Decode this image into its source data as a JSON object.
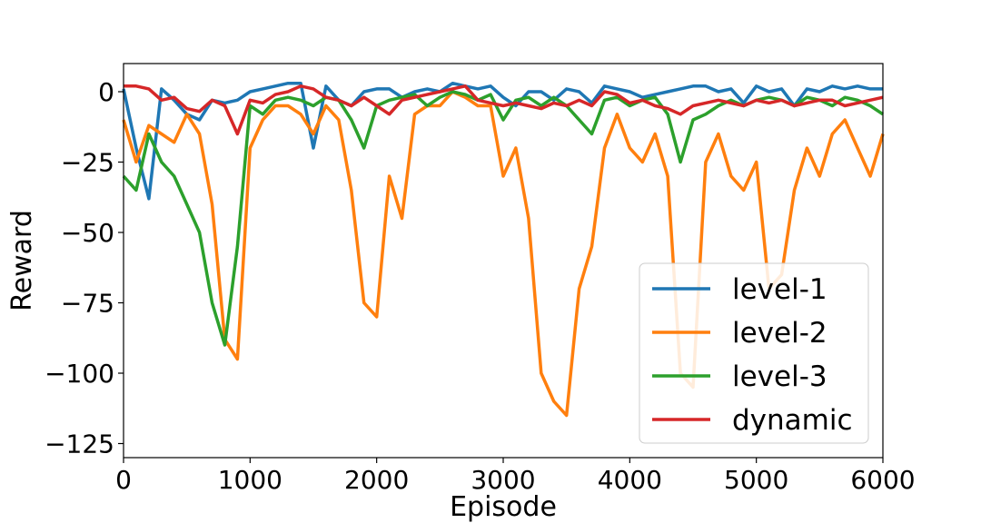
{
  "chart_data": {
    "type": "line",
    "title": "",
    "xlabel": "Episode",
    "ylabel": "Reward",
    "xlim": [
      0,
      6000
    ],
    "ylim": [
      -130,
      10
    ],
    "x_ticks": [
      {
        "value": 0,
        "label": "0"
      },
      {
        "value": 1000,
        "label": "1000"
      },
      {
        "value": 2000,
        "label": "2000"
      },
      {
        "value": 3000,
        "label": "3000"
      },
      {
        "value": 4000,
        "label": "4000"
      },
      {
        "value": 5000,
        "label": "5000"
      },
      {
        "value": 6000,
        "label": "6000"
      }
    ],
    "y_ticks": [
      {
        "value": 0,
        "label": "0"
      },
      {
        "value": -25,
        "label": "−25"
      },
      {
        "value": -50,
        "label": "−50"
      },
      {
        "value": -75,
        "label": "−75"
      },
      {
        "value": -100,
        "label": "−100"
      },
      {
        "value": -125,
        "label": "−125"
      }
    ],
    "grid": false,
    "legend_position": "bottom-right",
    "x": [
      0,
      100,
      200,
      300,
      400,
      500,
      600,
      700,
      800,
      900,
      1000,
      1100,
      1200,
      1300,
      1400,
      1500,
      1600,
      1700,
      1800,
      1900,
      2000,
      2100,
      2200,
      2300,
      2400,
      2500,
      2600,
      2700,
      2800,
      2900,
      3000,
      3100,
      3200,
      3300,
      3400,
      3500,
      3600,
      3700,
      3800,
      3900,
      4000,
      4100,
      4200,
      4300,
      4400,
      4500,
      4600,
      4700,
      4800,
      4900,
      5000,
      5100,
      5200,
      5300,
      5400,
      5500,
      5600,
      5700,
      5800,
      5900,
      6000
    ],
    "series": [
      {
        "name": "level-1",
        "color": "#1f77b4",
        "values": [
          1,
          -20,
          -38,
          1,
          -3,
          -8,
          -10,
          -3,
          -4,
          -3,
          0,
          1,
          2,
          3,
          3,
          -20,
          2,
          -3,
          -5,
          0,
          1,
          1,
          -2,
          0,
          1,
          0,
          3,
          2,
          1,
          2,
          -2,
          -5,
          0,
          0,
          -3,
          1,
          0,
          -4,
          2,
          1,
          0,
          -2,
          -1,
          0,
          1,
          2,
          2,
          0,
          1,
          -4,
          2,
          0,
          1,
          -5,
          1,
          0,
          2,
          1,
          2,
          1,
          1
        ]
      },
      {
        "name": "level-2",
        "color": "#ff7f0e",
        "values": [
          -10,
          -25,
          -12,
          -15,
          -18,
          -8,
          -15,
          -40,
          -88,
          -95,
          -20,
          -10,
          -5,
          -5,
          -8,
          -15,
          -5,
          -10,
          -35,
          -75,
          -80,
          -30,
          -45,
          -8,
          -5,
          -5,
          0,
          -2,
          -5,
          -5,
          -30,
          -20,
          -45,
          -100,
          -110,
          -115,
          -70,
          -55,
          -20,
          -8,
          -20,
          -25,
          -15,
          -30,
          -100,
          -105,
          -25,
          -15,
          -30,
          -35,
          -25,
          -70,
          -65,
          -35,
          -20,
          -30,
          -15,
          -10,
          -20,
          -30,
          -15
        ]
      },
      {
        "name": "level-3",
        "color": "#2ca02c",
        "values": [
          -30,
          -35,
          -15,
          -25,
          -30,
          -40,
          -50,
          -75,
          -90,
          -55,
          -5,
          -8,
          -3,
          -2,
          -3,
          -5,
          -2,
          -3,
          -10,
          -20,
          -5,
          -3,
          -2,
          -1,
          -5,
          -2,
          0,
          -1,
          -3,
          -1,
          -10,
          -3,
          -2,
          -5,
          -2,
          -5,
          -10,
          -15,
          -3,
          -2,
          -5,
          -3,
          -2,
          -8,
          -25,
          -10,
          -8,
          -5,
          -3,
          -5,
          -3,
          -2,
          -3,
          -5,
          -2,
          -3,
          -5,
          -2,
          -3,
          -5,
          -8
        ]
      },
      {
        "name": "dynamic",
        "color": "#d62728",
        "values": [
          2,
          2,
          1,
          -3,
          -2,
          -6,
          -7,
          -3,
          -5,
          -15,
          -3,
          -4,
          -1,
          0,
          2,
          1,
          -2,
          -3,
          -5,
          -2,
          -5,
          -8,
          -3,
          -2,
          -1,
          0,
          1,
          2,
          -3,
          -4,
          -5,
          -4,
          -5,
          -6,
          -4,
          -5,
          -3,
          -5,
          0,
          -1,
          -4,
          -3,
          -5,
          -6,
          -8,
          -5,
          -4,
          -3,
          -4,
          -5,
          -3,
          -4,
          -3,
          -5,
          -4,
          -3,
          -3,
          -5,
          -4,
          -3,
          -2
        ]
      }
    ]
  }
}
